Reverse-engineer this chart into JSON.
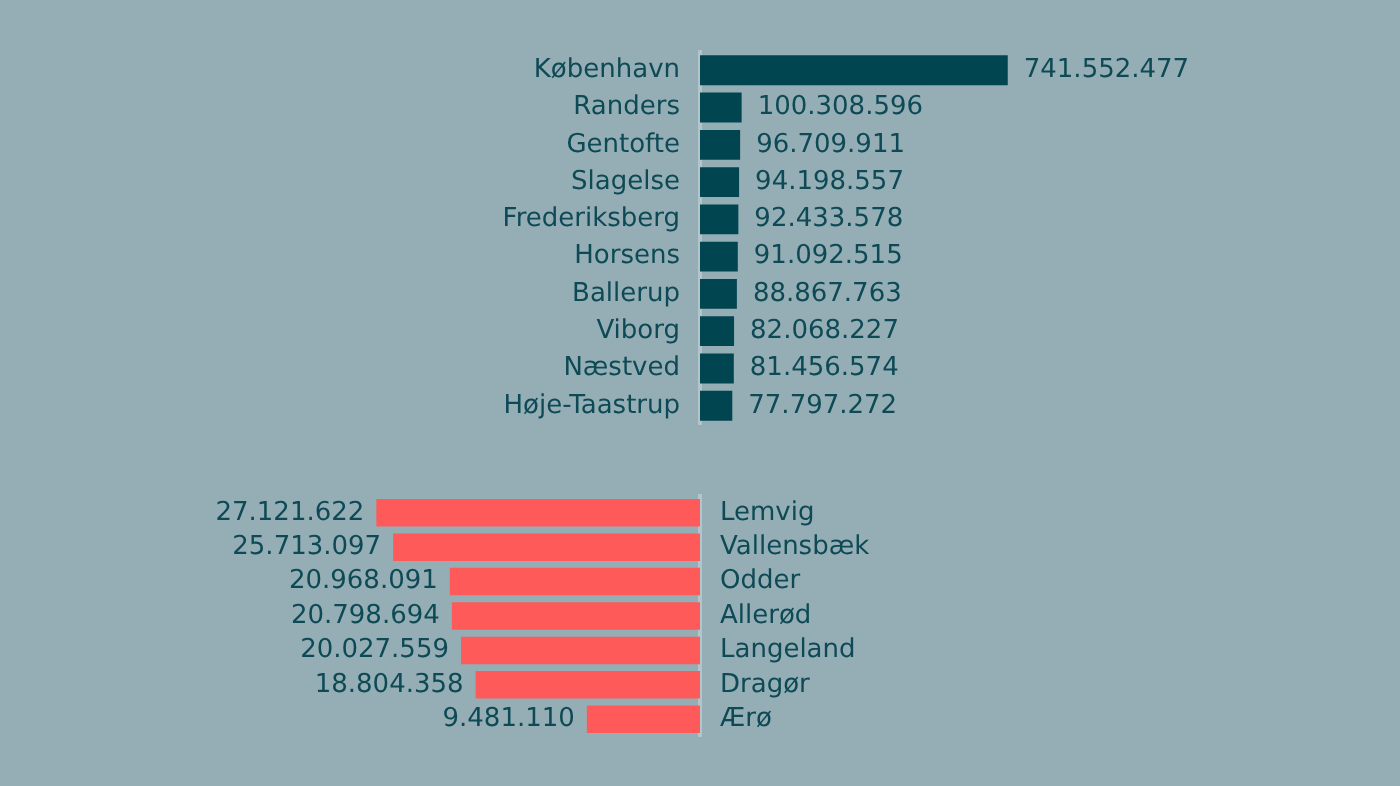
{
  "chart_data": [
    {
      "type": "bar",
      "orientation": "horizontal",
      "categories": [
        "København",
        "Randers",
        "Gentofte",
        "Slagelse",
        "Frederiksberg",
        "Horsens",
        "Ballerup",
        "Viborg",
        "Næstved",
        "Høje-Taastrup"
      ],
      "values": [
        741552477,
        100308596,
        96709911,
        94198557,
        92433578,
        91092515,
        88867763,
        82068227,
        81456574,
        77797272
      ],
      "value_labels": [
        "741.552.477",
        "100.308.596",
        "96.709.911",
        "94.198.557",
        "92.433.578",
        "91.092.515",
        "88.867.763",
        "82.068.227",
        "81.456.574",
        "77.797.272"
      ],
      "color": "#00454f",
      "tick_labels": "y"
    },
    {
      "type": "bar",
      "orientation": "horizontal",
      "categories": [
        "Lemvig",
        "Vallensbæk",
        "Odder",
        "Allerød",
        "Langeland",
        "Dragør",
        "Ærø"
      ],
      "values": [
        27121622,
        25713097,
        20968091,
        20798694,
        20027559,
        18804358,
        9481110
      ],
      "value_labels": [
        "27.121.622",
        "25.713.097",
        "20.968.091",
        "20.798.694",
        "20.027.559",
        "18.804.358",
        "9.481.110"
      ],
      "color": "#ff5a5a",
      "tick_labels": "y"
    }
  ]
}
